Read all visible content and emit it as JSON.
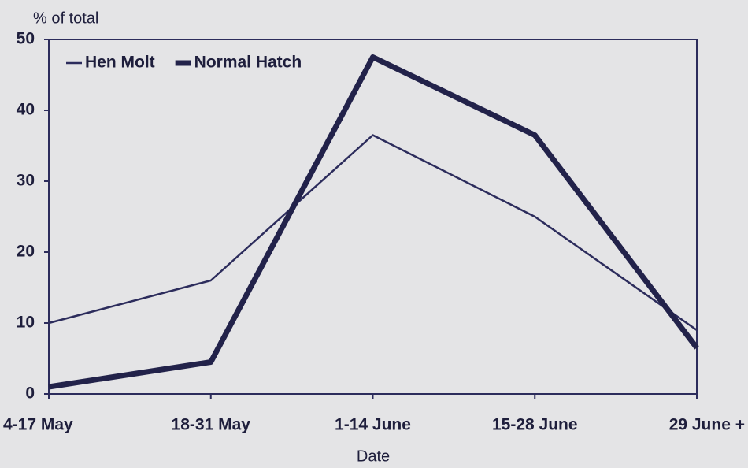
{
  "chart_data": {
    "type": "line",
    "y_label": "% of total",
    "x_label": "Date",
    "categories": [
      "4-17 May",
      "18-31 May",
      "1-14 June",
      "15-28 June",
      "29 June +"
    ],
    "series": [
      {
        "name": "Hen Molt",
        "color": "#2c2c5c",
        "line_width": 2.5,
        "values": [
          10,
          16,
          36.5,
          25,
          9
        ]
      },
      {
        "name": "Normal Hatch",
        "color": "#22224a",
        "line_width": 7,
        "values": [
          1,
          4.5,
          47.5,
          36.5,
          6.5
        ]
      }
    ],
    "ylim": [
      0,
      50
    ],
    "yticks": [
      0,
      10,
      20,
      30,
      40,
      50
    ],
    "legend": "upper left"
  }
}
